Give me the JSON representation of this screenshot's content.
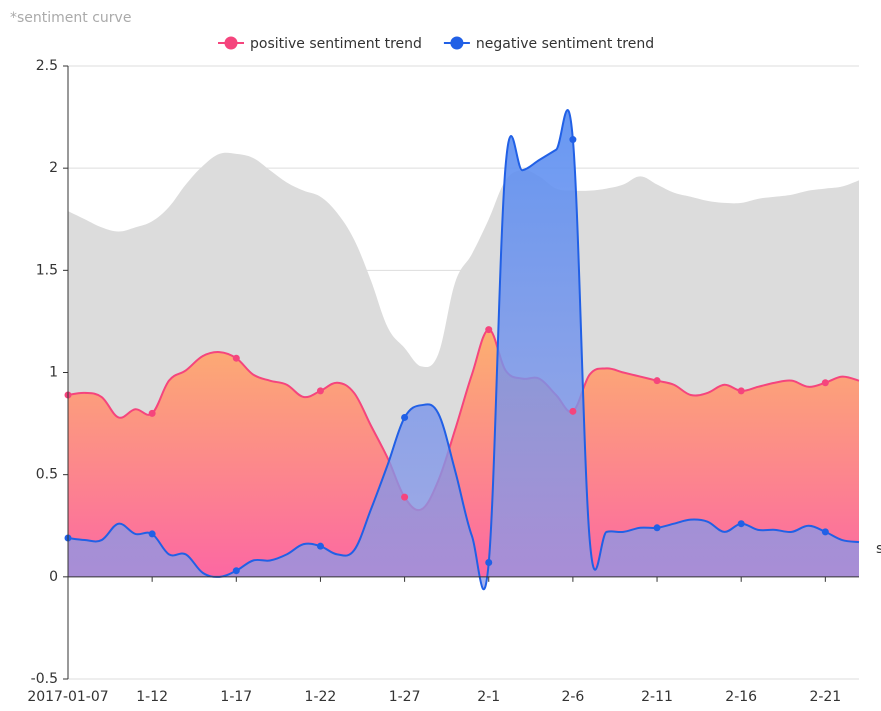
{
  "chart_data": {
    "type": "line",
    "title": "*sentiment curve",
    "annotation": "s",
    "categories": [
      "2017-01-07",
      null,
      null,
      null,
      null,
      "1-12",
      null,
      null,
      null,
      null,
      "1-17",
      null,
      null,
      null,
      null,
      "1-22",
      null,
      null,
      null,
      null,
      "1-27",
      null,
      null,
      null,
      null,
      "2-1",
      null,
      null,
      null,
      null,
      "2-6",
      null,
      null,
      null,
      null,
      "2-11",
      null,
      null,
      null,
      null,
      "2-16",
      null,
      null,
      null,
      null,
      "2-21",
      null,
      null
    ],
    "series": [
      {
        "color": "#dcdcdc",
        "values": [
          1.79,
          1.75,
          1.71,
          1.69,
          1.71,
          1.74,
          1.81,
          1.92,
          2.01,
          2.07,
          2.07,
          2.05,
          1.99,
          1.93,
          1.89,
          1.86,
          1.78,
          1.65,
          1.45,
          1.22,
          1.12,
          1.03,
          1.09,
          1.44,
          1.58,
          1.75,
          1.94,
          1.99,
          1.96,
          1.9,
          1.89,
          1.89,
          1.9,
          1.92,
          1.96,
          1.92,
          1.88,
          1.86,
          1.84,
          1.83,
          1.83,
          1.85,
          1.86,
          1.87,
          1.89,
          1.9,
          1.91,
          1.94
        ]
      },
      {
        "name": "positive sentiment trend",
        "color": "#f5457d",
        "values": [
          0.89,
          0.9,
          0.88,
          0.78,
          0.82,
          0.8,
          0.96,
          1.01,
          1.08,
          1.1,
          1.07,
          0.99,
          0.96,
          0.94,
          0.88,
          0.91,
          0.95,
          0.9,
          0.74,
          0.58,
          0.39,
          0.33,
          0.47,
          0.72,
          0.99,
          1.21,
          1.01,
          0.97,
          0.97,
          0.89,
          0.81,
          0.99,
          1.02,
          1.0,
          0.98,
          0.96,
          0.94,
          0.89,
          0.9,
          0.94,
          0.91,
          0.93,
          0.95,
          0.96,
          0.93,
          0.95,
          0.98,
          0.96
        ]
      },
      {
        "name": "negative sentiment trend",
        "color": "#2160e6",
        "values": [
          0.19,
          0.18,
          0.18,
          0.26,
          0.21,
          0.21,
          0.11,
          0.11,
          0.02,
          0.0,
          0.03,
          0.08,
          0.08,
          0.11,
          0.16,
          0.15,
          0.11,
          0.13,
          0.33,
          0.55,
          0.78,
          0.84,
          0.8,
          0.52,
          0.2,
          0.07,
          2.01,
          1.99,
          2.04,
          2.09,
          2.14,
          0.18,
          0.22,
          0.22,
          0.24,
          0.24,
          0.26,
          0.28,
          0.27,
          0.22,
          0.26,
          0.23,
          0.23,
          0.22,
          0.25,
          0.22,
          0.18,
          0.17
        ]
      }
    ],
    "ylim": [
      -0.5,
      2.5
    ],
    "yticks": [
      -0.5,
      0,
      0.5,
      1,
      1.5,
      2,
      2.5
    ],
    "grid": true,
    "smooth": true,
    "legend": "top"
  }
}
